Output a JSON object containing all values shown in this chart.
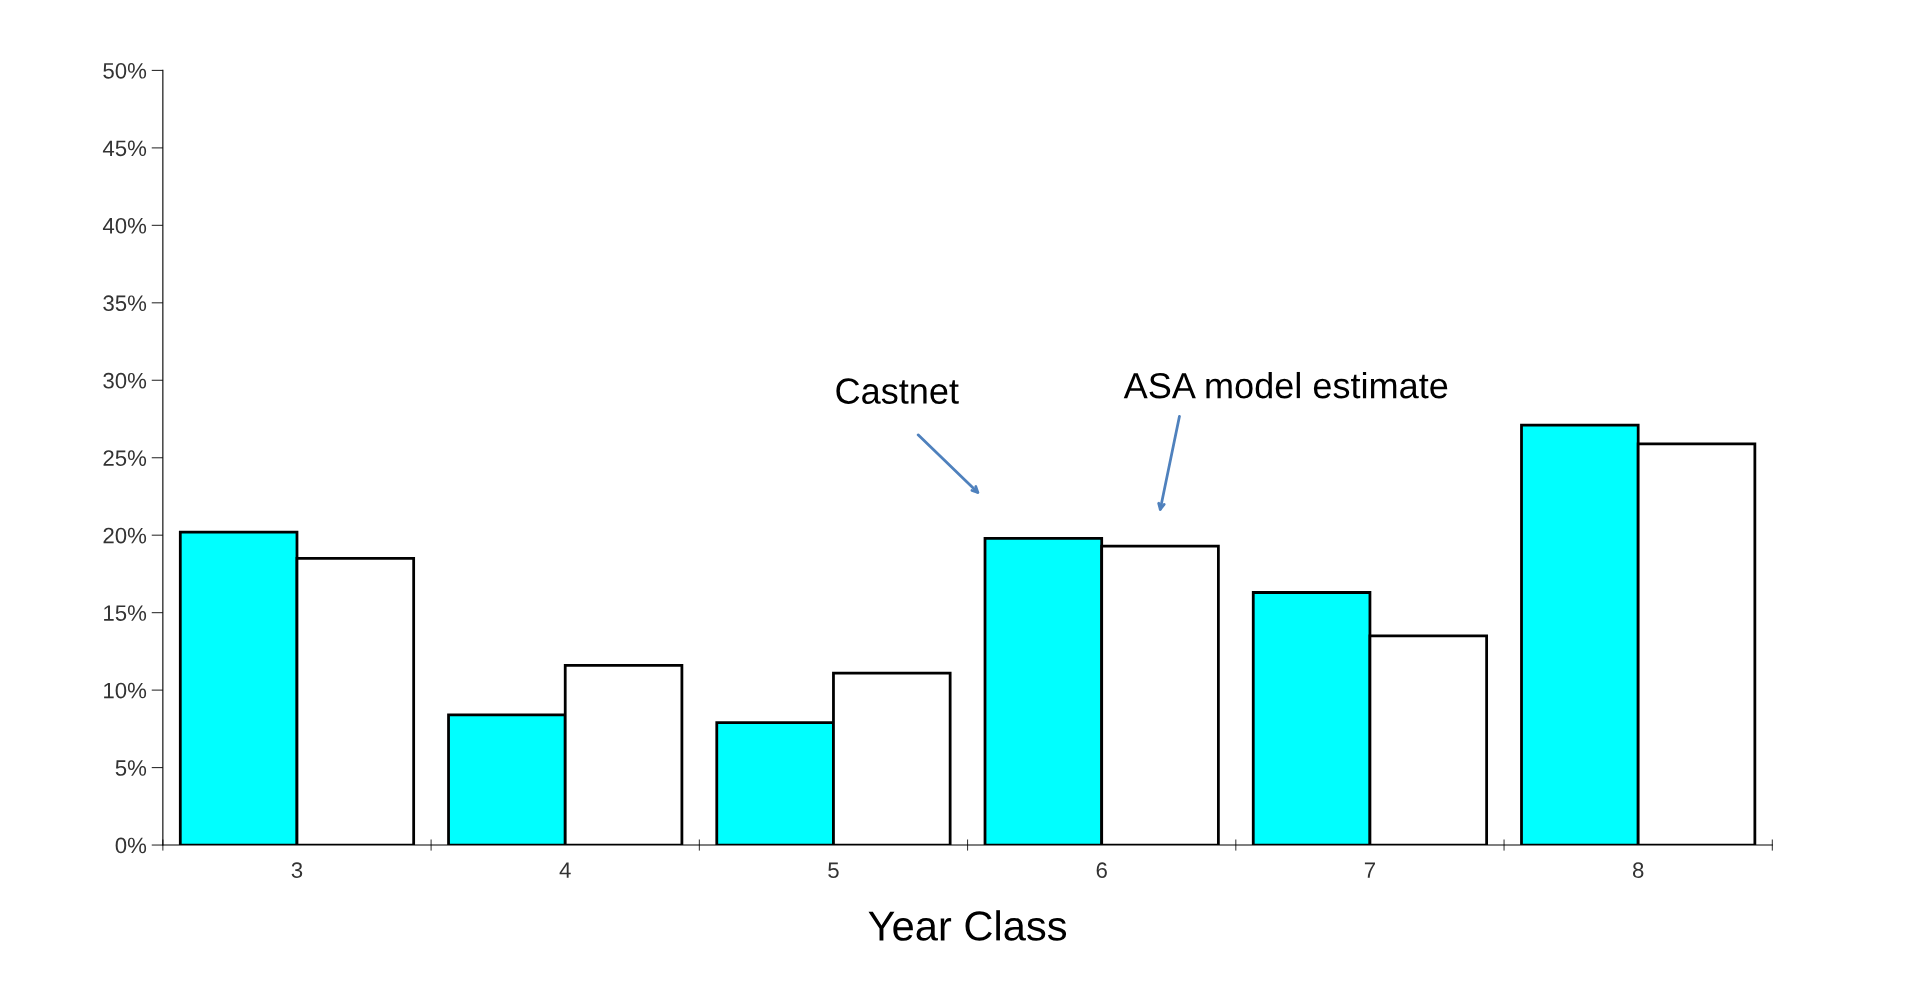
{
  "chart_data": {
    "type": "bar",
    "xlabel": "Year Class",
    "categories": [
      "3",
      "4",
      "5",
      "6",
      "7",
      "8"
    ],
    "series": [
      {
        "color": "#00ffff",
        "values": [
          20.2,
          8.4,
          7.9,
          19.8,
          16.3,
          27.1
        ]
      },
      {
        "color": "#ffffff",
        "values": [
          18.5,
          11.6,
          11.1,
          19.3,
          13.5,
          25.9
        ]
      }
    ],
    "ylim": [
      0,
      50
    ],
    "yticks": [
      {
        "value": 0,
        "label": "0%"
      },
      {
        "value": 5,
        "label": "5%"
      },
      {
        "value": 10,
        "label": "10%"
      },
      {
        "value": 15,
        "label": "15%"
      },
      {
        "value": 20,
        "label": "20%"
      },
      {
        "value": 25,
        "label": "25%"
      },
      {
        "value": 30,
        "label": "30%"
      },
      {
        "value": 35,
        "label": "35%"
      },
      {
        "value": 40,
        "label": "40%"
      },
      {
        "value": 45,
        "label": "45%"
      },
      {
        "value": 50,
        "label": "50%"
      }
    ],
    "annotations": [
      "Castnet",
      "ASA model estimate"
    ],
    "grid": false,
    "legend": false
  }
}
